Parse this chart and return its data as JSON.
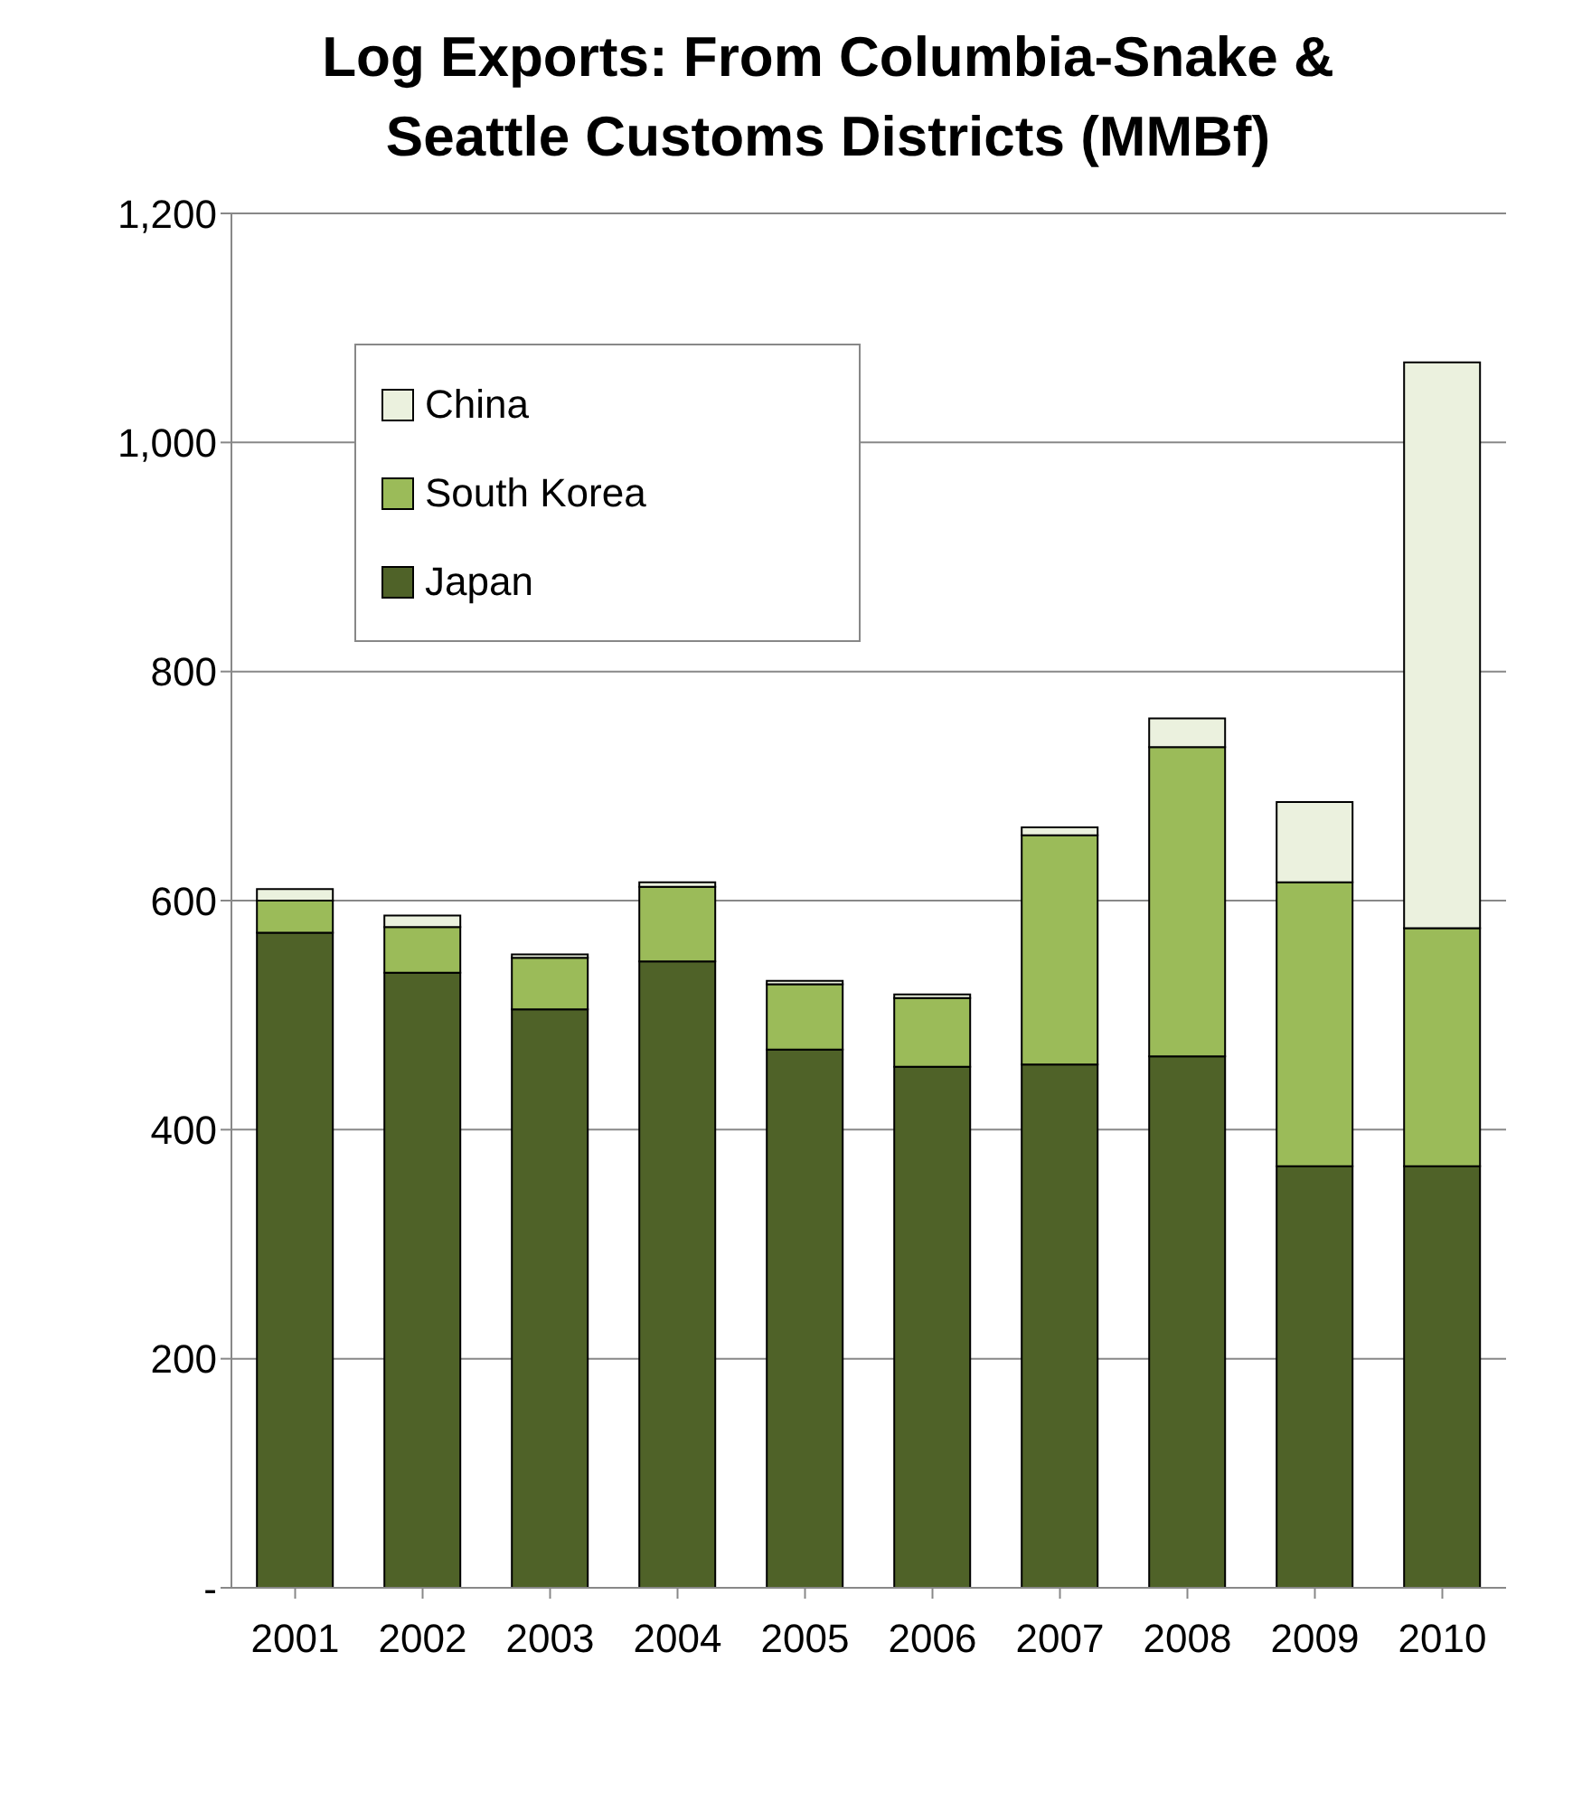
{
  "chart_data": {
    "type": "bar",
    "title": "Log Exports: From Columbia-Snake & Seattle Customs Districts (MMBf)",
    "categories": [
      "2001",
      "2002",
      "2003",
      "2004",
      "2005",
      "2006",
      "2007",
      "2008",
      "2009",
      "2010"
    ],
    "series": [
      {
        "name": "Japan",
        "color": "#4f6228",
        "values": [
          572,
          537,
          505,
          547,
          470,
          455,
          457,
          464,
          368,
          368
        ]
      },
      {
        "name": "South Korea",
        "color": "#9bbb59",
        "values": [
          28,
          40,
          45,
          65,
          57,
          60,
          200,
          270,
          248,
          208
        ]
      },
      {
        "name": "China",
        "color": "#ebf1de",
        "values": [
          10,
          10,
          3,
          4,
          3,
          3,
          7,
          25,
          70,
          494
        ]
      }
    ],
    "stacked": true,
    "ylim": [
      0,
      1200
    ],
    "yticks": [
      {
        "value": 0,
        "label": "-"
      },
      200,
      400,
      600,
      800,
      {
        "value": 1000,
        "label": "1,000"
      },
      {
        "value": 1200,
        "label": "1,200"
      }
    ],
    "grid": "y",
    "legend": "top left"
  }
}
